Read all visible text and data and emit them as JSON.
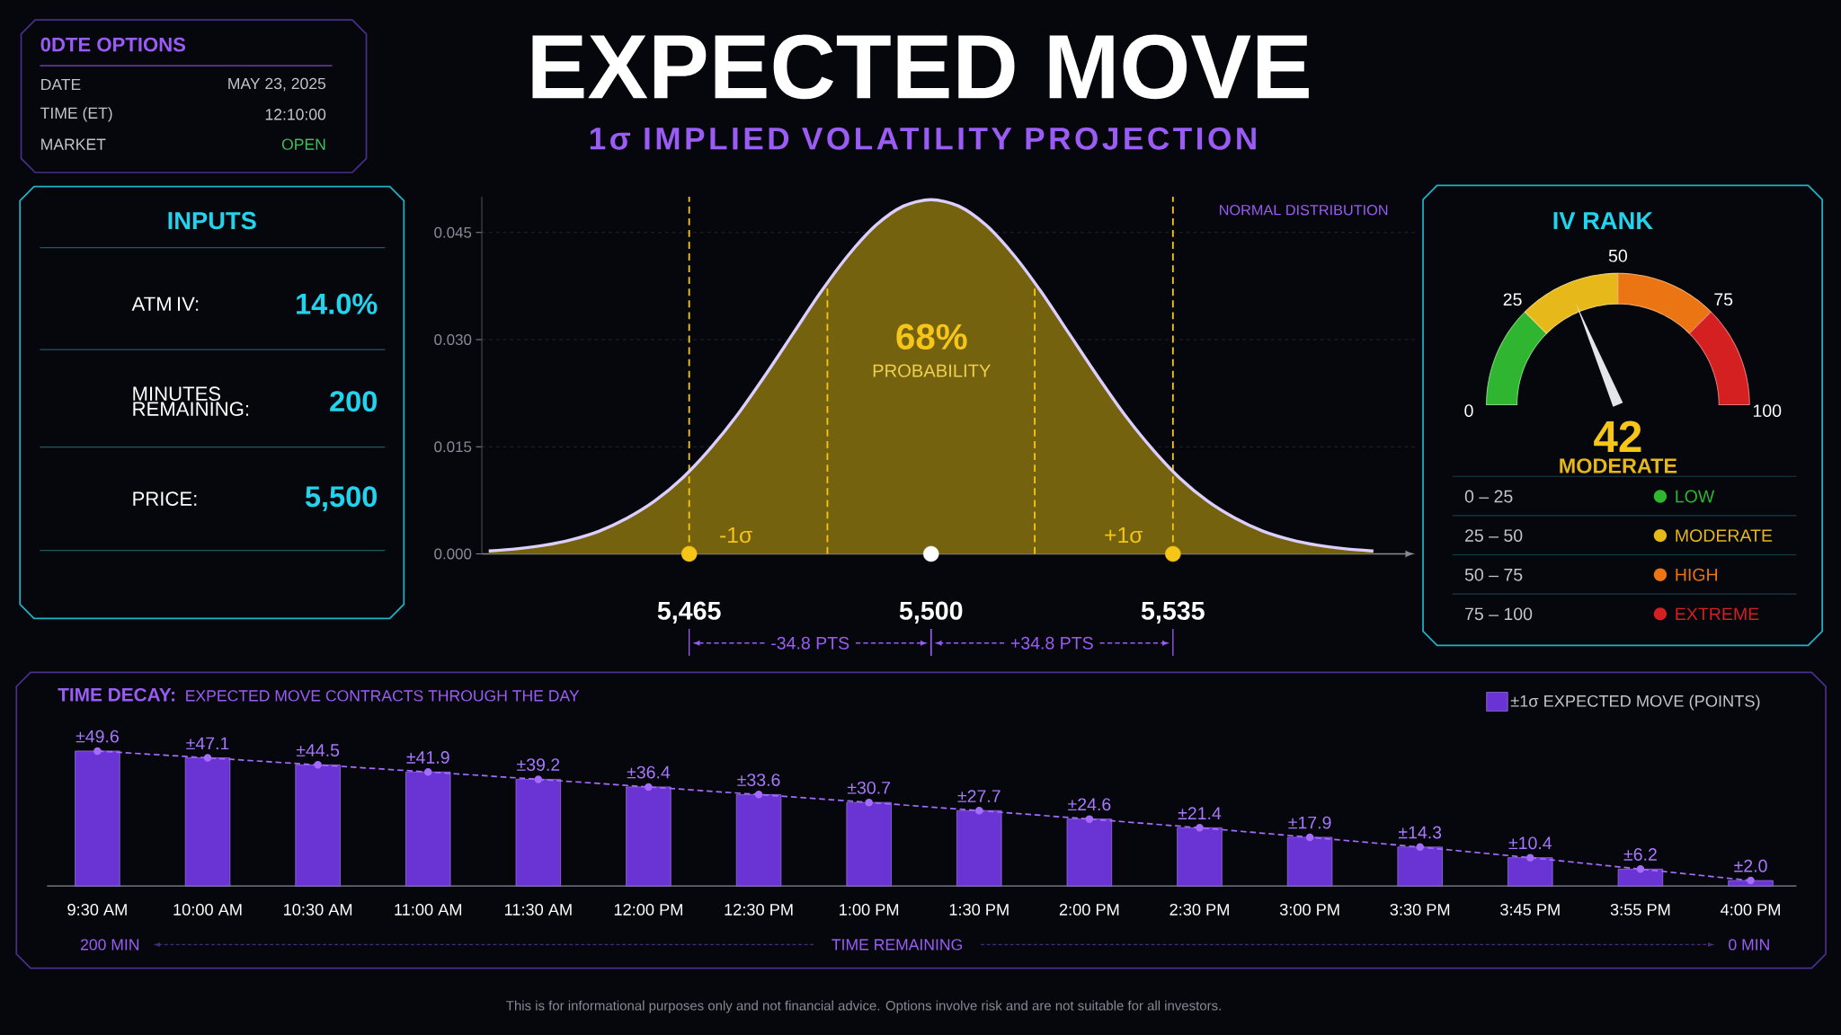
{
  "chart_data": [
    {
      "type": "other",
      "title": "0DTE OPTIONS",
      "annotations": [
        "DATE",
        "MAY 23, 2025",
        "TIME (ET)",
        "12:10:00",
        "MARKET",
        "OPEN"
      ]
    },
    {
      "type": "other",
      "title": "INPUTS",
      "annotations": [
        "ATM IV:",
        "14.0%",
        "MINUTES REMAINING:",
        "200",
        "PRICE:",
        "5,500"
      ]
    },
    {
      "type": "area",
      "title": "EXPECTED MOVE",
      "subtitle": "1σ IMPLIED VOLATILITY PROJECTION",
      "x": [
        5436,
        5440,
        5444,
        5448,
        5452,
        5456,
        5460,
        5464,
        5468,
        5472,
        5476,
        5480,
        5484,
        5488,
        5492,
        5496,
        5500,
        5504,
        5508,
        5512,
        5516,
        5520,
        5524,
        5528,
        5532,
        5536,
        5540,
        5544,
        5548,
        5552,
        5556,
        5560,
        5564
      ],
      "series": [
        {
          "type": "area",
          "color": "#74620f",
          "values": [
            0.0004,
            0.0007,
            0.0012,
            0.002,
            0.0032,
            0.005,
            0.0074,
            0.0106,
            0.0147,
            0.0195,
            0.025,
            0.0308,
            0.0366,
            0.0418,
            0.046,
            0.0487,
            0.0496,
            0.0487,
            0.046,
            0.0418,
            0.0366,
            0.0308,
            0.025,
            0.0195,
            0.0147,
            0.0106,
            0.0074,
            0.005,
            0.0032,
            0.002,
            0.0012,
            0.0007,
            0.0004
          ]
        },
        {
          "type": "line",
          "color": "#dccfff",
          "values": [
            0.0004,
            0.0007,
            0.0012,
            0.002,
            0.0032,
            0.005,
            0.0074,
            0.0106,
            0.0147,
            0.0195,
            0.025,
            0.0308,
            0.0366,
            0.0418,
            0.046,
            0.0487,
            0.0496,
            0.0487,
            0.046,
            0.0418,
            0.0366,
            0.0308,
            0.025,
            0.0195,
            0.0147,
            0.0106,
            0.0074,
            0.005,
            0.0032,
            0.002,
            0.0012,
            0.0007,
            0.0004
          ]
        },
        {
          "type": "scatter",
          "x": [
            5465,
            5500,
            5535
          ],
          "values": [
            0,
            0,
            0
          ],
          "colors": [
            "#f5c518",
            "#ffffff",
            "#f5c518"
          ],
          "marker": "circle"
        }
      ],
      "xlim": [
        5435,
        5570
      ],
      "ylim": [
        0,
        0.05
      ],
      "xticks": [
        {
          "value": 5465,
          "label": "5,465"
        },
        {
          "value": 5500,
          "label": "5,500"
        },
        {
          "value": 5535,
          "label": "5,535"
        }
      ],
      "yticks": [
        {
          "value": 0,
          "label": "0.000"
        },
        {
          "value": 0.015,
          "label": "0.015"
        },
        {
          "value": 0.03,
          "label": "0.030"
        },
        {
          "value": 0.045,
          "label": "0.045"
        }
      ],
      "grid": "y",
      "ref_lines": [
        {
          "axis": "x",
          "value": 5465,
          "label": "-1σ",
          "color": "#f5c518",
          "line_style": "dashed"
        },
        {
          "axis": "x",
          "value": 5485,
          "color": "#f5c518",
          "line_style": "dashed"
        },
        {
          "axis": "x",
          "value": 5515,
          "color": "#f5c518",
          "line_style": "dashed"
        },
        {
          "axis": "x",
          "value": 5535,
          "label": "+1σ",
          "color": "#f5c518",
          "line_style": "dashed"
        }
      ],
      "annotations": [
        "NORMAL DISTRIBUTION",
        "68%",
        "PROBABILITY",
        "-34.8 PTS",
        "+34.8 PTS"
      ]
    },
    {
      "type": "donut",
      "title": "IV RANK",
      "categories": [
        "LOW",
        "MODERATE",
        "HIGH",
        "EXTREME"
      ],
      "values": [
        25,
        25,
        25,
        25
      ],
      "colors": [
        "#2fb52f",
        "#e6b81a",
        "#ea7512",
        "#d42020"
      ],
      "needle": "MODERATE",
      "legend": "bottom",
      "annotations": [
        "0",
        "25",
        "50",
        "75",
        "100",
        "42",
        "MODERATE",
        "0 – 25",
        "25 – 50",
        "50 – 75",
        "75 – 100"
      ]
    },
    {
      "type": "bar",
      "title": "TIME DECAY:",
      "subtitle": "EXPECTED MOVE CONTRACTS THROUGH THE DAY",
      "categories": [
        "9:30 AM",
        "10:00 AM",
        "10:30 AM",
        "11:00 AM",
        "11:30 AM",
        "12:00 PM",
        "12:30 PM",
        "1:00 PM",
        "1:30 PM",
        "2:00 PM",
        "2:30 PM",
        "3:00 PM",
        "3:30 PM",
        "3:45 PM",
        "3:55 PM",
        "4:00 PM"
      ],
      "series": [
        {
          "name": "±1σ EXPECTED MOVE (POINTS)",
          "color": "#6a34d4",
          "values": [
            49.6,
            47.1,
            44.5,
            41.9,
            39.2,
            36.4,
            33.6,
            30.7,
            27.7,
            24.6,
            21.4,
            17.9,
            14.3,
            10.4,
            6.2,
            2.0
          ],
          "value_labels": [
            "±49.6",
            "±47.1",
            "±44.5",
            "±41.9",
            "±39.2",
            "±36.4",
            "±33.6",
            "±30.7",
            "±27.7",
            "±24.6",
            "±21.4",
            "±17.9",
            "±14.3",
            "±10.4",
            "±6.2",
            "±2.0"
          ]
        },
        {
          "type": "line",
          "color": "#a66cff",
          "values": [
            49.6,
            47.1,
            44.5,
            41.9,
            39.2,
            36.4,
            33.6,
            30.7,
            27.7,
            24.6,
            21.4,
            17.9,
            14.3,
            10.4,
            6.2,
            2.0
          ],
          "marker": "circle",
          "line_style": "dashed"
        }
      ],
      "legend": "top right",
      "annotations": [
        "200 MIN",
        "TIME REMAINING",
        "0 MIN",
        "This is for informational purposes only and not financial advice. Options involve risk and are not suitable for all investors."
      ]
    }
  ]
}
